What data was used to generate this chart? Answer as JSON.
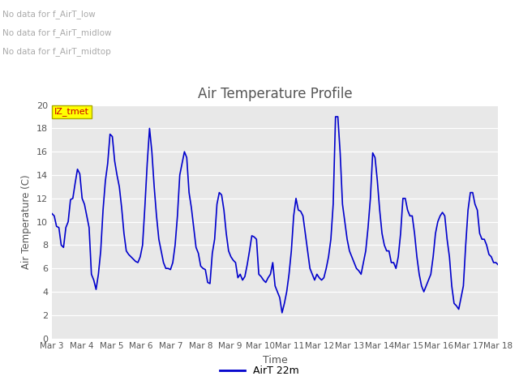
{
  "title": "Air Temperature Profile",
  "xlabel": "Time",
  "ylabel": "Air Temperature (C)",
  "ylim": [
    0,
    20
  ],
  "line_color": "#0000CC",
  "line_width": 1.2,
  "legend_label": "AirT 22m",
  "annotations": [
    "No data for f_AirT_low",
    "No data for f_AirT_midlow",
    "No data for f_AirT_midtop"
  ],
  "annotation_color": "#aaaaaa",
  "x_tick_labels": [
    "Mar 3",
    "Mar 4",
    "Mar 5",
    "Mar 6",
    "Mar 7",
    "Mar 8",
    "Mar 9",
    "Mar 10",
    "Mar 11",
    "Mar 12",
    "Mar 13",
    "Mar 14",
    "Mar 15",
    "Mar 16",
    "Mar 17",
    "Mar 18"
  ],
  "fig_bg_color": "#ffffff",
  "plot_bg_color": "#e8e8e8",
  "tmet_box_color": "#ffff00",
  "tmet_text": "IZ_tmet",
  "tmet_text_color": "#cc0000",
  "y_ticks": [
    0,
    2,
    4,
    6,
    8,
    10,
    12,
    14,
    16,
    18,
    20
  ],
  "time_series": [
    10.7,
    10.5,
    9.6,
    9.5,
    8.0,
    7.8,
    9.5,
    10.0,
    11.9,
    12.0,
    13.3,
    14.5,
    14.1,
    12.0,
    11.5,
    10.5,
    9.5,
    5.5,
    5.0,
    4.2,
    5.5,
    7.5,
    11.0,
    13.5,
    15.0,
    17.5,
    17.3,
    15.2,
    14.0,
    13.0,
    11.2,
    9.0,
    7.5,
    7.2,
    7.0,
    6.8,
    6.6,
    6.5,
    7.0,
    8.0,
    11.3,
    15.0,
    18.0,
    16.0,
    13.0,
    10.5,
    8.5,
    7.5,
    6.5,
    6.0,
    6.0,
    5.9,
    6.5,
    8.0,
    10.5,
    14.0,
    15.0,
    16.0,
    15.5,
    12.5,
    11.2,
    9.5,
    7.8,
    7.3,
    6.2,
    6.0,
    5.9,
    4.8,
    4.7,
    7.3,
    8.5,
    11.5,
    12.5,
    12.3,
    11.0,
    9.0,
    7.5,
    7.0,
    6.7,
    6.5,
    5.2,
    5.5,
    5.0,
    5.3,
    6.3,
    7.5,
    8.8,
    8.7,
    8.5,
    5.5,
    5.3,
    5.0,
    4.8,
    5.2,
    5.5,
    6.5,
    4.5,
    4.0,
    3.5,
    2.2,
    3.0,
    4.0,
    5.5,
    7.5,
    10.5,
    12.0,
    11.0,
    10.9,
    10.5,
    9.0,
    7.5,
    6.0,
    5.5,
    5.0,
    5.5,
    5.2,
    5.0,
    5.2,
    6.0,
    7.0,
    8.5,
    11.5,
    19.0,
    19.0,
    15.9,
    11.5,
    10.0,
    8.5,
    7.5,
    7.0,
    6.5,
    6.0,
    5.8,
    5.5,
    6.5,
    7.5,
    9.5,
    12.0,
    15.9,
    15.5,
    13.5,
    11.0,
    9.0,
    8.0,
    7.5,
    7.5,
    6.5,
    6.5,
    6.0,
    7.0,
    9.0,
    12.0,
    12.0,
    11.0,
    10.5,
    10.5,
    9.0,
    7.0,
    5.5,
    4.5,
    4.0,
    4.5,
    5.0,
    5.5,
    7.0,
    9.0,
    10.0,
    10.5,
    10.8,
    10.5,
    8.5,
    7.0,
    4.5,
    3.0,
    2.8,
    2.5,
    3.5,
    4.5,
    8.0,
    11.0,
    12.5,
    12.5,
    11.5,
    11.0,
    9.0,
    8.5,
    8.5,
    8.0,
    7.2,
    7.0,
    6.5,
    6.5,
    6.3
  ]
}
